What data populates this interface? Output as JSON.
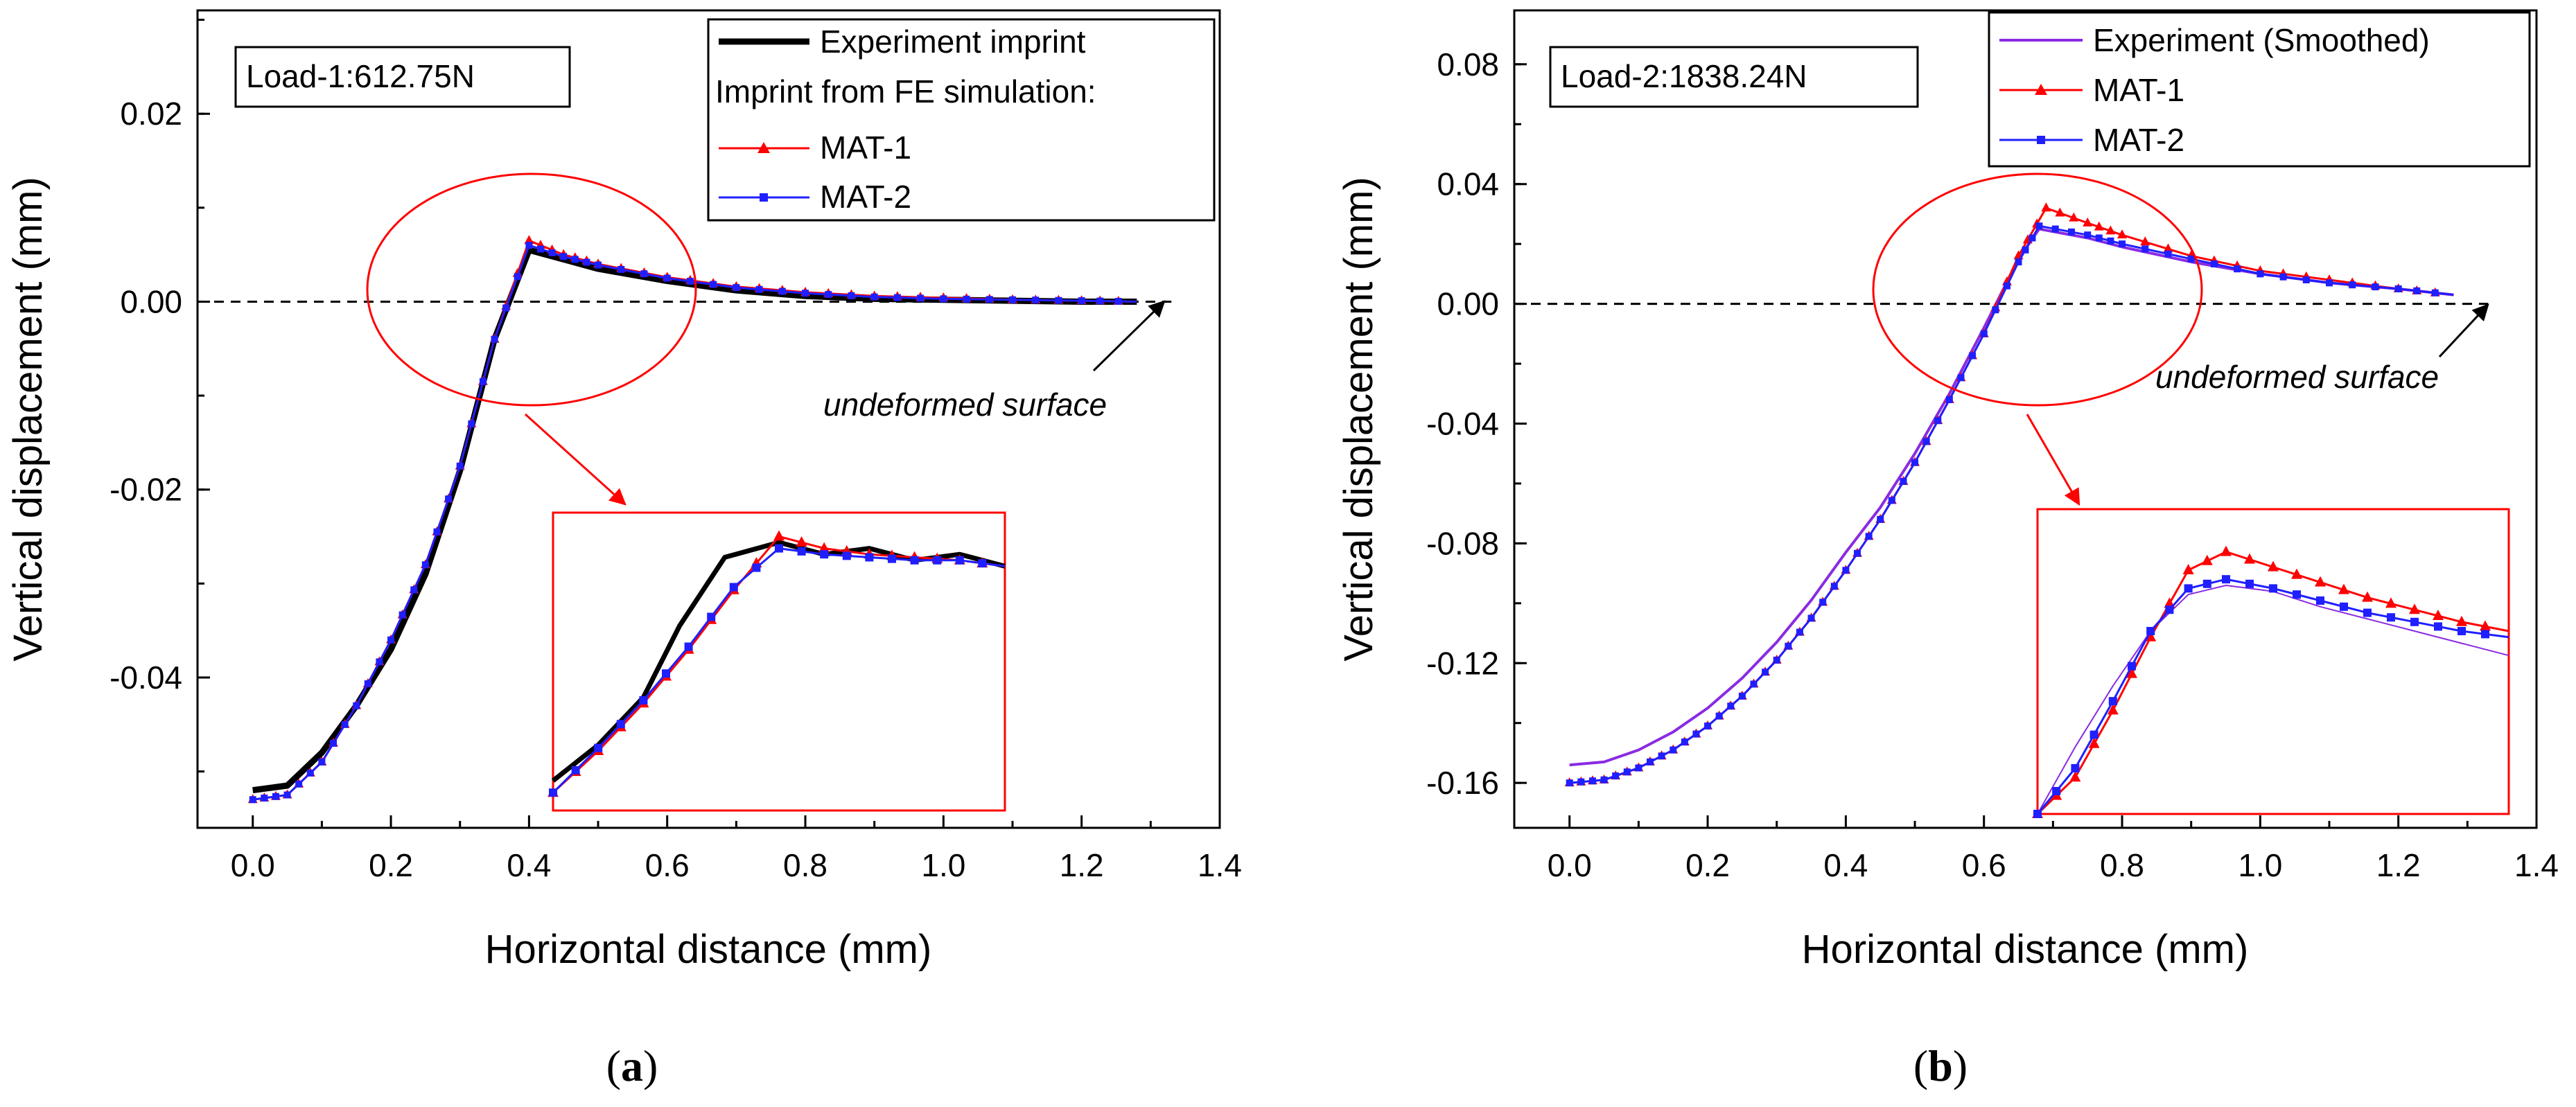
{
  "figure": {
    "panel_a_caption_letter": "a",
    "panel_b_caption_letter": "b",
    "caption_open": "(",
    "caption_close": ")"
  },
  "colors": {
    "experiment_a": "#000000",
    "experiment_b": "#8a2be2",
    "mat1": "#ff0000",
    "mat2": "#1f1fff",
    "annotation": "#ff0000",
    "arrow": "#000000"
  },
  "chart_data": [
    {
      "type": "line",
      "panel": "a",
      "xlabel": "Horizontal distance (mm)",
      "ylabel": "Vertical displacement (mm)",
      "xlim": [
        -0.08,
        1.4
      ],
      "ylim": [
        -0.056,
        0.031
      ],
      "xticks": [
        0.0,
        0.2,
        0.4,
        0.6,
        0.8,
        1.0,
        1.2,
        1.4
      ],
      "xtick_labels": [
        "0.0",
        "0.2",
        "0.4",
        "0.6",
        "0.8",
        "1.0",
        "1.2",
        "1.4"
      ],
      "yticks": [
        -0.04,
        -0.02,
        0.0,
        0.02
      ],
      "ytick_labels": [
        "-0.04",
        "-0.02",
        "0.00",
        "0.02"
      ],
      "load_label": "Load-1:612.75N",
      "legend": {
        "experiment": "Experiment imprint",
        "subheading": "Imprint from FE simulation:",
        "mat1": "MAT-1",
        "mat2": "MAT-2"
      },
      "annotation": "undeformed surface",
      "baseline": 0.0,
      "series": [
        {
          "name": "Experiment imprint",
          "x": [
            0.0,
            0.05,
            0.1,
            0.15,
            0.2,
            0.25,
            0.3,
            0.35,
            0.4,
            0.45,
            0.5,
            0.6,
            0.7,
            0.8,
            0.9,
            1.0,
            1.1,
            1.2,
            1.28
          ],
          "y": [
            -0.052,
            -0.0515,
            -0.048,
            -0.043,
            -0.037,
            -0.029,
            -0.018,
            -0.004,
            0.0055,
            0.0045,
            0.0035,
            0.0022,
            0.0012,
            0.0006,
            0.0003,
            0.0002,
            0.0001,
            0.0,
            0.0
          ]
        },
        {
          "name": "MAT-1",
          "x": [
            0.0,
            0.05,
            0.1,
            0.15,
            0.2,
            0.25,
            0.3,
            0.35,
            0.4,
            0.45,
            0.5,
            0.6,
            0.7,
            0.8,
            0.9,
            1.0,
            1.1,
            1.2,
            1.28
          ],
          "y": [
            -0.053,
            -0.0525,
            -0.049,
            -0.043,
            -0.036,
            -0.028,
            -0.0175,
            -0.004,
            0.0065,
            0.005,
            0.004,
            0.0026,
            0.0016,
            0.001,
            0.0006,
            0.0004,
            0.0002,
            0.0001,
            0.0
          ]
        },
        {
          "name": "MAT-2",
          "x": [
            0.0,
            0.05,
            0.1,
            0.15,
            0.2,
            0.25,
            0.3,
            0.35,
            0.4,
            0.45,
            0.5,
            0.6,
            0.7,
            0.8,
            0.9,
            1.0,
            1.1,
            1.2,
            1.28
          ],
          "y": [
            -0.053,
            -0.0525,
            -0.049,
            -0.043,
            -0.036,
            -0.028,
            -0.0175,
            -0.004,
            0.006,
            0.0048,
            0.0039,
            0.0025,
            0.0015,
            0.0009,
            0.0005,
            0.0003,
            0.0002,
            0.0001,
            0.0
          ]
        }
      ],
      "inset": {
        "series": [
          {
            "name": "Experiment imprint",
            "x": [
              0.0,
              0.1,
              0.2,
              0.28,
              0.38,
              0.5,
              0.6,
              0.7,
              0.8,
              0.9,
              1.0
            ],
            "y": [
              0.1,
              0.22,
              0.38,
              0.62,
              0.85,
              0.9,
              0.86,
              0.88,
              0.84,
              0.86,
              0.82
            ]
          },
          {
            "name": "MAT-1",
            "x": [
              0.0,
              0.1,
              0.2,
              0.3,
              0.4,
              0.5,
              0.6,
              0.7,
              0.8,
              0.9,
              1.0
            ],
            "y": [
              0.06,
              0.2,
              0.36,
              0.54,
              0.74,
              0.92,
              0.88,
              0.86,
              0.85,
              0.84,
              0.82
            ]
          },
          {
            "name": "MAT-2",
            "x": [
              0.0,
              0.1,
              0.2,
              0.3,
              0.4,
              0.5,
              0.6,
              0.7,
              0.8,
              0.9,
              1.0
            ],
            "y": [
              0.06,
              0.21,
              0.37,
              0.55,
              0.75,
              0.88,
              0.86,
              0.85,
              0.84,
              0.84,
              0.82
            ]
          }
        ]
      }
    },
    {
      "type": "line",
      "panel": "b",
      "xlabel": "Horizontal distance (mm)",
      "ylabel": "Vertical displacement (mm)",
      "xlim": [
        -0.08,
        1.4
      ],
      "ylim": [
        -0.175,
        0.098
      ],
      "xticks": [
        0.0,
        0.2,
        0.4,
        0.6,
        0.8,
        1.0,
        1.2,
        1.4
      ],
      "xtick_labels": [
        "0.0",
        "0.2",
        "0.4",
        "0.6",
        "0.8",
        "1.0",
        "1.2",
        "1.4"
      ],
      "yticks": [
        -0.16,
        -0.12,
        -0.08,
        -0.04,
        0.0,
        0.04,
        0.08
      ],
      "ytick_labels": [
        "-0.16",
        "-0.12",
        "-0.08",
        "-0.04",
        "0.00",
        "0.04",
        "0.08"
      ],
      "load_label": "Load-2:1838.24N",
      "legend": {
        "experiment": "Experiment (Smoothed)",
        "mat1": "MAT-1",
        "mat2": "MAT-2"
      },
      "annotation": "undeformed surface",
      "baseline": 0.0,
      "series": [
        {
          "name": "Experiment (Smoothed)",
          "x": [
            0.0,
            0.05,
            0.1,
            0.15,
            0.2,
            0.25,
            0.3,
            0.35,
            0.4,
            0.45,
            0.5,
            0.55,
            0.6,
            0.65,
            0.68,
            0.75,
            0.8,
            0.9,
            1.0,
            1.1,
            1.2,
            1.28
          ],
          "y": [
            -0.154,
            -0.153,
            -0.149,
            -0.143,
            -0.135,
            -0.125,
            -0.113,
            -0.099,
            -0.083,
            -0.068,
            -0.05,
            -0.03,
            -0.008,
            0.015,
            0.025,
            0.022,
            0.019,
            0.014,
            0.01,
            0.007,
            0.005,
            0.003
          ]
        },
        {
          "name": "MAT-1",
          "x": [
            0.0,
            0.05,
            0.1,
            0.15,
            0.2,
            0.25,
            0.3,
            0.35,
            0.4,
            0.45,
            0.5,
            0.55,
            0.6,
            0.65,
            0.69,
            0.75,
            0.8,
            0.9,
            1.0,
            1.1,
            1.2,
            1.28
          ],
          "y": [
            -0.16,
            -0.159,
            -0.155,
            -0.149,
            -0.141,
            -0.131,
            -0.119,
            -0.105,
            -0.089,
            -0.072,
            -0.053,
            -0.032,
            -0.01,
            0.016,
            0.032,
            0.027,
            0.023,
            0.016,
            0.011,
            0.008,
            0.005,
            0.003
          ]
        },
        {
          "name": "MAT-2",
          "x": [
            0.0,
            0.05,
            0.1,
            0.15,
            0.2,
            0.25,
            0.3,
            0.35,
            0.4,
            0.45,
            0.5,
            0.55,
            0.6,
            0.65,
            0.68,
            0.75,
            0.8,
            0.9,
            1.0,
            1.1,
            1.2,
            1.28
          ],
          "y": [
            -0.16,
            -0.159,
            -0.155,
            -0.149,
            -0.141,
            -0.131,
            -0.119,
            -0.105,
            -0.089,
            -0.072,
            -0.053,
            -0.032,
            -0.01,
            0.014,
            0.026,
            0.023,
            0.02,
            0.015,
            0.01,
            0.007,
            0.005,
            0.003
          ]
        }
      ],
      "inset": {
        "series": [
          {
            "name": "Experiment (Smoothed)",
            "x": [
              0.0,
              0.08,
              0.16,
              0.24,
              0.32,
              0.4,
              0.5,
              0.6,
              0.7,
              0.8,
              0.9,
              1.0
            ],
            "y": [
              0.0,
              0.22,
              0.42,
              0.6,
              0.72,
              0.75,
              0.73,
              0.68,
              0.64,
              0.6,
              0.56,
              0.52
            ]
          },
          {
            "name": "MAT-1",
            "x": [
              0.0,
              0.08,
              0.16,
              0.24,
              0.32,
              0.4,
              0.5,
              0.6,
              0.7,
              0.8,
              0.9,
              1.0
            ],
            "y": [
              0.0,
              0.12,
              0.34,
              0.58,
              0.8,
              0.86,
              0.81,
              0.76,
              0.71,
              0.67,
              0.63,
              0.6
            ]
          },
          {
            "name": "MAT-2",
            "x": [
              0.0,
              0.08,
              0.16,
              0.24,
              0.32,
              0.4,
              0.5,
              0.6,
              0.7,
              0.8,
              0.9,
              1.0
            ],
            "y": [
              0.0,
              0.15,
              0.37,
              0.6,
              0.74,
              0.77,
              0.74,
              0.7,
              0.66,
              0.63,
              0.6,
              0.58
            ]
          }
        ]
      }
    }
  ]
}
